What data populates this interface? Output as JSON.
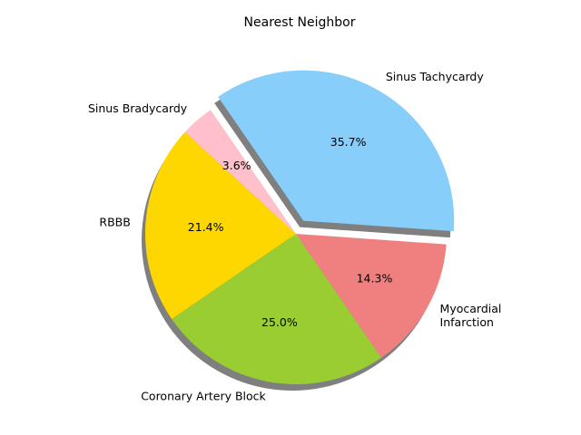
{
  "chart_data": {
    "type": "pie",
    "title": "Nearest Neighbor",
    "slices": [
      {
        "label": "Sinus Tachycardy",
        "value": 35.7,
        "pct_label": "35.7%",
        "color": "#87CEFA",
        "exploded": true
      },
      {
        "label": "Sinus Bradycardy",
        "value": 3.6,
        "pct_label": "3.6%",
        "color": "#FFC0CB",
        "exploded": false
      },
      {
        "label": "RBBB",
        "value": 21.4,
        "pct_label": "21.4%",
        "color": "#FFD700",
        "exploded": false
      },
      {
        "label": "Coronary Artery Block",
        "value": 25.0,
        "pct_label": "25.0%",
        "color": "#9ACD32",
        "exploded": false
      },
      {
        "label": "Myocardial\nInfarction",
        "value": 14.3,
        "pct_label": "14.3%",
        "color": "#F08080",
        "exploded": false
      }
    ],
    "start_angle_deg": -4,
    "direction": "counterclockwise",
    "shadow": true
  }
}
